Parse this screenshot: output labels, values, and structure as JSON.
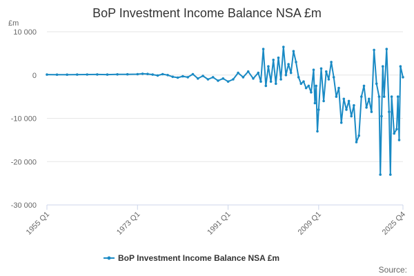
{
  "chart_data": {
    "type": "line",
    "title": "BoP Investment Income Balance NSA £m",
    "ylabel": "£m",
    "xlabel": "",
    "ylim": [
      -30000,
      10000
    ],
    "yticks": [
      10000,
      0,
      -10000,
      -20000,
      -30000
    ],
    "ytick_labels": [
      "10 000",
      "0",
      "-10 000",
      "-20 000",
      "-30 000"
    ],
    "xticks": [
      "1955 Q1",
      "1973 Q1",
      "1991 Q1",
      "2009 Q1",
      "2025 Q4"
    ],
    "x_start": "1955 Q1",
    "x_end": "2025 Q4",
    "grid": true,
    "legend_position": "bottom",
    "source": "Source:",
    "series": [
      {
        "name": "BoP Investment Income Balance NSA £m",
        "color": "#1a8ac4",
        "points": [
          [
            "1955 Q1",
            100
          ],
          [
            "1957 Q1",
            80
          ],
          [
            "1959 Q1",
            90
          ],
          [
            "1961 Q1",
            110
          ],
          [
            "1963 Q1",
            120
          ],
          [
            "1965 Q1",
            130
          ],
          [
            "1967 Q1",
            100
          ],
          [
            "1969 Q1",
            150
          ],
          [
            "1971 Q1",
            160
          ],
          [
            "1973 Q1",
            200
          ],
          [
            "1974 Q1",
            300
          ],
          [
            "1975 Q1",
            250
          ],
          [
            "1976 Q1",
            100
          ],
          [
            "1977 Q1",
            -100
          ],
          [
            "1978 Q1",
            200
          ],
          [
            "1979 Q1",
            0
          ],
          [
            "1980 Q1",
            -400
          ],
          [
            "1981 Q1",
            -600
          ],
          [
            "1982 Q1",
            -300
          ],
          [
            "1983 Q1",
            -500
          ],
          [
            "1984 Q1",
            200
          ],
          [
            "1985 Q1",
            -800
          ],
          [
            "1986 Q1",
            -200
          ],
          [
            "1987 Q1",
            -1000
          ],
          [
            "1988 Q1",
            -500
          ],
          [
            "1989 Q1",
            -1300
          ],
          [
            "1990 Q1",
            -800
          ],
          [
            "1991 Q1",
            -1500
          ],
          [
            "1992 Q1",
            -1000
          ],
          [
            "1993 Q1",
            500
          ],
          [
            "1994 Q1",
            -500
          ],
          [
            "1995 Q1",
            800
          ],
          [
            "1996 Q1",
            -800
          ],
          [
            "1997 Q1",
            500
          ],
          [
            "1997 Q3",
            -1500
          ],
          [
            "1998 Q1",
            6000
          ],
          [
            "1998 Q3",
            -2500
          ],
          [
            "1999 Q1",
            2000
          ],
          [
            "1999 Q3",
            -1500
          ],
          [
            "2000 Q1",
            3500
          ],
          [
            "2000 Q3",
            -2000
          ],
          [
            "2001 Q1",
            4000
          ],
          [
            "2001 Q3",
            -1000
          ],
          [
            "2002 Q1",
            6500
          ],
          [
            "2002 Q3",
            0
          ],
          [
            "2003 Q1",
            2500
          ],
          [
            "2003 Q3",
            500
          ],
          [
            "2004 Q1",
            5500
          ],
          [
            "2004 Q3",
            3000
          ],
          [
            "2005 Q1",
            -500
          ],
          [
            "2005 Q3",
            -2000
          ],
          [
            "2006 Q1",
            -1500
          ],
          [
            "2006 Q3",
            -3000
          ],
          [
            "2007 Q1",
            -2500
          ],
          [
            "2007 Q3",
            -4000
          ],
          [
            "2008 Q1",
            1200
          ],
          [
            "2008 Q2",
            -6500
          ],
          [
            "2008 Q3",
            -2500
          ],
          [
            "2008 Q4",
            -13000
          ],
          [
            "2009 Q1",
            -8000
          ],
          [
            "2009 Q3",
            1500
          ],
          [
            "2010 Q1",
            -6000
          ],
          [
            "2010 Q3",
            800
          ],
          [
            "2011 Q1",
            -1000
          ],
          [
            "2011 Q3",
            3000
          ],
          [
            "2012 Q1",
            -500
          ],
          [
            "2012 Q3",
            -5000
          ],
          [
            "2013 Q1",
            -3000
          ],
          [
            "2013 Q3",
            -11000
          ],
          [
            "2014 Q1",
            -5500
          ],
          [
            "2014 Q3",
            -8000
          ],
          [
            "2015 Q1",
            -6000
          ],
          [
            "2015 Q3",
            -9500
          ],
          [
            "2016 Q1",
            -7000
          ],
          [
            "2016 Q3",
            -15500
          ],
          [
            "2017 Q1",
            -14000
          ],
          [
            "2017 Q3",
            -5000
          ],
          [
            "2018 Q1",
            -2500
          ],
          [
            "2018 Q3",
            -7500
          ],
          [
            "2019 Q1",
            -5500
          ],
          [
            "2019 Q3",
            -8500
          ],
          [
            "2020 Q1",
            5800
          ],
          [
            "2020 Q3",
            -2000
          ],
          [
            "2021 Q1",
            -5000
          ],
          [
            "2021 Q2",
            -23000
          ],
          [
            "2021 Q3",
            -9500
          ],
          [
            "2021 Q4",
            2000
          ],
          [
            "2022 Q1",
            -5000
          ],
          [
            "2022 Q3",
            6000
          ],
          [
            "2023 Q1",
            -8500
          ],
          [
            "2023 Q2",
            -23000
          ],
          [
            "2023 Q3",
            -5000
          ],
          [
            "2024 Q1",
            -13500
          ],
          [
            "2024 Q3",
            -12500
          ],
          [
            "2024 Q4",
            -5000
          ],
          [
            "2025 Q1",
            -15000
          ],
          [
            "2025 Q2",
            2000
          ],
          [
            "2025 Q4",
            -500
          ]
        ]
      }
    ]
  }
}
